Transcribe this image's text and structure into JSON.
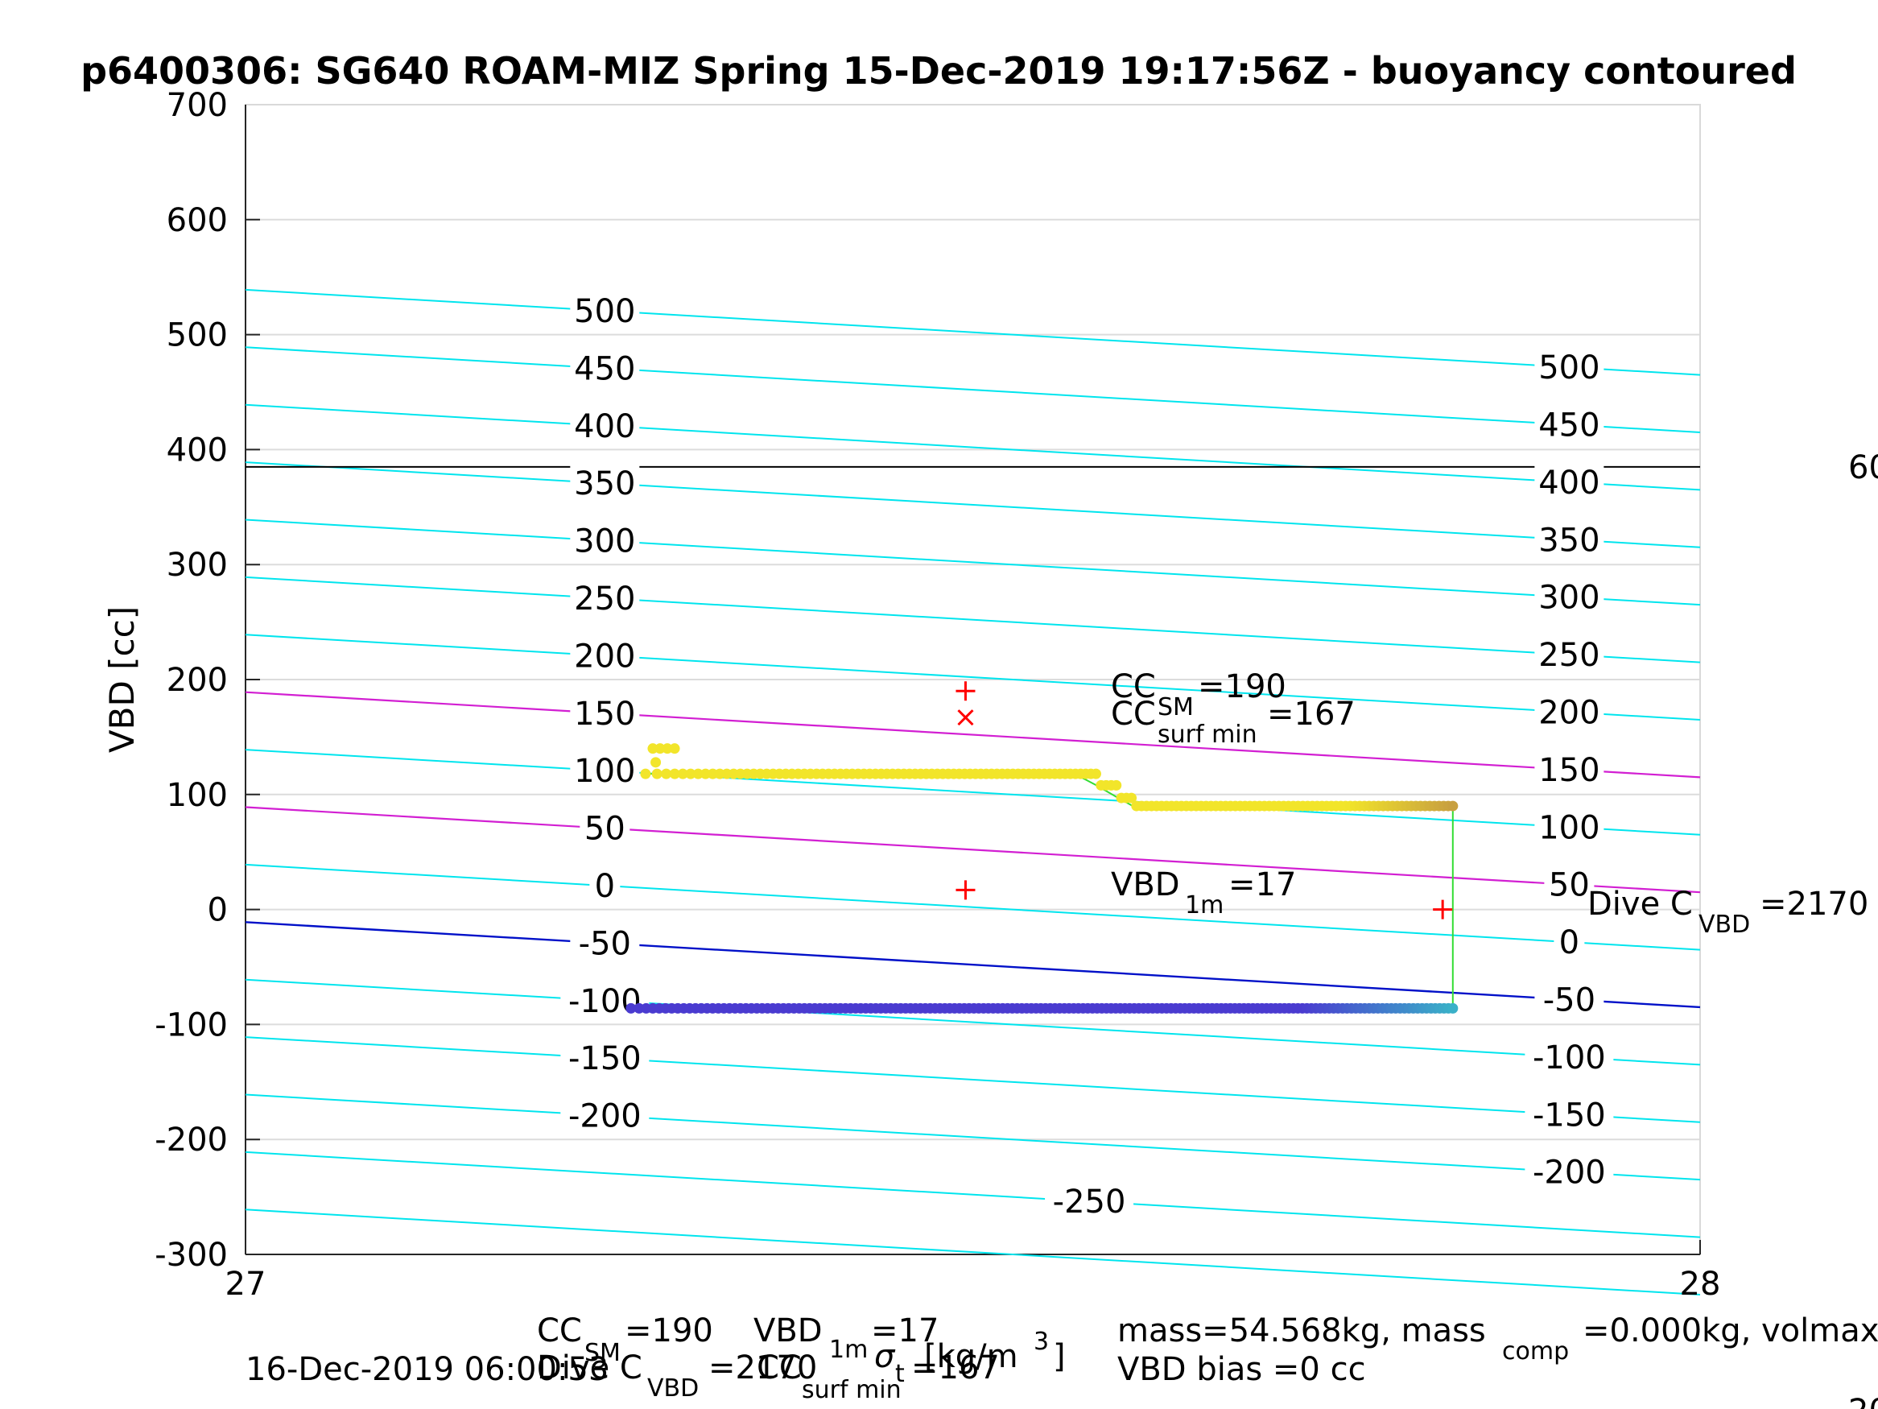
{
  "chart_data": {
    "type": "scatter",
    "title": "p6400306: SG640 ROAM-MIZ Spring 15-Dec-2019 19:17:56Z - buoyancy contoured",
    "ylabel": "VBD [cc]",
    "xlabel": {
      "main": "σ",
      "sub": "t",
      "sup": "1m",
      "unit": "[kg/m",
      "unit_sup": "3",
      "unit_end": "]"
    },
    "xlim": [
      27,
      28
    ],
    "ylim": [
      -300,
      700
    ],
    "x_ticks": [
      "27",
      "28"
    ],
    "y_ticks": [
      -300,
      -200,
      -100,
      0,
      100,
      200,
      300,
      400,
      500,
      600,
      700
    ],
    "grid": "horizontal",
    "colors": {
      "contour": "#00e5ee",
      "contour_highlight": "#d21fd2",
      "zero_line": "#0010c8",
      "reference_line": "#000000",
      "connector": "#33dd33",
      "marker": "#ff0000"
    },
    "contour_levels": [
      550,
      500,
      450,
      400,
      350,
      300,
      250,
      200,
      150,
      100,
      50,
      0,
      -50,
      -100,
      -150,
      -200,
      -250
    ],
    "contour_label_left": [
      "500",
      "450",
      "400",
      "350",
      "300",
      "250",
      "200",
      "150",
      "100",
      "50",
      "0",
      "-50",
      "-100",
      "-150",
      "-200",
      "-250"
    ],
    "contour_label_right": [
      "500",
      "450",
      "400",
      "350",
      "300",
      "250",
      "200",
      "150",
      "100",
      "50",
      "0",
      "-50",
      "-100",
      "-150",
      "-200"
    ],
    "reference_line_vbd": 385,
    "upper_series": {
      "x_start": 27.275,
      "x_end": 27.83,
      "levels": [
        {
          "x": 27.275,
          "y": 118
        },
        {
          "x": 27.57,
          "y": 118
        },
        {
          "x": 27.585,
          "y": 108
        },
        {
          "x": 27.6,
          "y": 97
        },
        {
          "x": 27.61,
          "y": 90
        },
        {
          "x": 27.83,
          "y": 90
        }
      ]
    },
    "lower_series": {
      "x_start": 27.265,
      "x_end": 27.83,
      "y": -86
    },
    "markers": [
      {
        "symbol": "+",
        "x": 27.495,
        "y": 190
      },
      {
        "symbol": "x",
        "x": 27.495,
        "y": 167
      },
      {
        "symbol": "+",
        "x": 27.495,
        "y": 17
      },
      {
        "symbol": "+",
        "x": 27.823,
        "y": 0
      }
    ],
    "annotations": {
      "cc_sm": {
        "main": "CC",
        "sub": "SM",
        "value": "=190"
      },
      "cc_surf": {
        "main": "CC",
        "sub": "surf min",
        "value": "=167"
      },
      "vbd_1m": {
        "main": "VBD",
        "sub": "1m",
        "value": "=17"
      },
      "dive_c": {
        "main": "Dive C",
        "sub": "VBD",
        "value": "=2170"
      },
      "right_edge": "60"
    },
    "footer": {
      "line1_left": {
        "main": "CC",
        "sub": "SM",
        "value": "=190",
        "vbd": "VBD",
        "vbd_sub": "1m",
        "vbd_value": "=17"
      },
      "line2_left": {
        "main": "Dive C",
        "sub": "VBD",
        "value": "=2170",
        "cc": "CC",
        "cc_sub": "surf min",
        "cc_value": "=167"
      },
      "timestamp": "16-Dec-2019 06:00:53",
      "mass": "mass=54.568kg, mass",
      "mass_sub": "comp",
      "mass_rest": "=0.000kg, volmax",
      "vbd_bias": "VBD bias =0 cc",
      "bottom_right": "20"
    }
  }
}
